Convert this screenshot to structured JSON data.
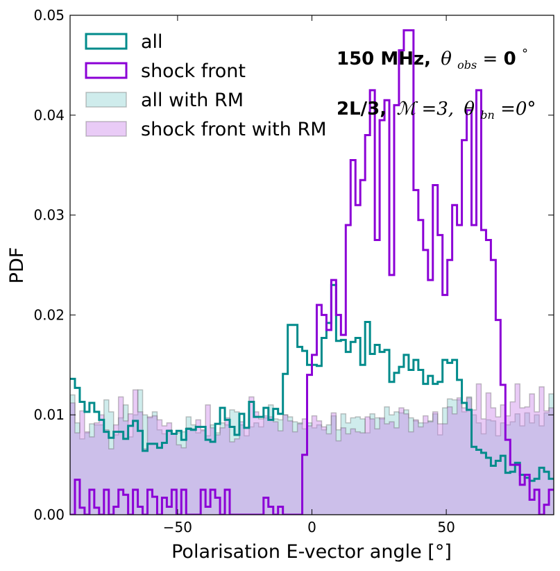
{
  "chart_data": {
    "type": "histogram",
    "xlabel": "Polarisation E-vector angle [°]",
    "ylabel": "PDF",
    "xlim": [
      -90,
      90
    ],
    "ylim": [
      0,
      0.05
    ],
    "xticks": [
      -50,
      0,
      50
    ],
    "yticks": [
      0.0,
      0.01,
      0.02,
      0.03,
      0.04,
      0.05
    ],
    "xtick_labels": [
      "−50",
      "0",
      "50"
    ],
    "ytick_labels": [
      "0.00",
      "0.01",
      "0.02",
      "0.03",
      "0.04",
      "0.05"
    ],
    "bin_edges_range": [
      -90,
      90
    ],
    "n_bins": 100,
    "annotations": {
      "line1_bold": "150 MHz,",
      "line1_math": "θ",
      "line1_sub": "obs",
      "line1_eq": "=",
      "line1_val": "0",
      "line1_deg": "°",
      "line2_bold": "2L/3,",
      "line2_math1": "ℳ",
      "line2_eq1": "=3,",
      "line2_math2": "θ",
      "line2_sub2": "bn",
      "line2_eq2": "=0°"
    },
    "legend": {
      "placement": "top-left",
      "entries": [
        "all",
        "shock front",
        "all with RM",
        "shock front with RM"
      ]
    },
    "series": [
      {
        "name": "all",
        "style": "step",
        "color": "#008b8b",
        "values": [
          0.0136,
          0.0127,
          0.0113,
          0.0103,
          0.0112,
          0.0103,
          0.0095,
          0.0083,
          0.0077,
          0.0083,
          0.0083,
          0.0076,
          0.0089,
          0.0094,
          0.0084,
          0.0064,
          0.0071,
          0.0071,
          0.0067,
          0.0072,
          0.0084,
          0.0081,
          0.0084,
          0.0075,
          0.0086,
          0.0085,
          0.0088,
          0.0088,
          0.0075,
          0.0073,
          0.0091,
          0.0107,
          0.0095,
          0.0088,
          0.008,
          0.0101,
          0.0087,
          0.0113,
          0.0098,
          0.0098,
          0.0107,
          0.0095,
          0.0106,
          0.0101,
          0.0141,
          0.019,
          0.019,
          0.0168,
          0.0164,
          0.015,
          0.015,
          0.0149,
          0.0177,
          0.0192,
          0.023,
          0.0174,
          0.0175,
          0.0163,
          0.0173,
          0.0177,
          0.015,
          0.0193,
          0.0161,
          0.017,
          0.0163,
          0.0165,
          0.0133,
          0.0142,
          0.0148,
          0.016,
          0.0145,
          0.0155,
          0.0145,
          0.0131,
          0.0139,
          0.0131,
          0.0133,
          0.0155,
          0.0152,
          0.0155,
          0.0135,
          0.0112,
          0.0105,
          0.0068,
          0.0065,
          0.0062,
          0.0057,
          0.0049,
          0.0054,
          0.0059,
          0.0042,
          0.0043,
          0.0052,
          0.004,
          0.0037,
          0.0034,
          0.0036,
          0.0047,
          0.0043,
          0.0036
        ],
        "note": "values estimated from gridlines"
      },
      {
        "name": "shock front",
        "style": "step",
        "color": "#8b00d6",
        "values": [
          0.0,
          0.0035,
          0.0007,
          0.0,
          0.0025,
          0.0007,
          0.0,
          0.0025,
          0.0,
          0.0008,
          0.0025,
          0.002,
          0.0,
          0.0025,
          0.0008,
          0.0,
          0.0025,
          0.0018,
          0.0,
          0.0017,
          0.0008,
          0.0025,
          0.0,
          0.0025,
          0.0,
          0.0,
          0.0,
          0.0025,
          0.0008,
          0.0025,
          0.0017,
          0.0,
          0.0025,
          0.0,
          0.0,
          0.0,
          0.0,
          0.0,
          0.0,
          0.0,
          0.0017,
          0.0008,
          0.0,
          0.0008,
          0.0,
          0.0,
          0.0,
          0.0,
          0.006,
          0.014,
          0.016,
          0.021,
          0.02,
          0.0185,
          0.0235,
          0.02,
          0.018,
          0.029,
          0.0355,
          0.031,
          0.0335,
          0.038,
          0.0425,
          0.0275,
          0.0395,
          0.0415,
          0.024,
          0.041,
          0.0465,
          0.0485,
          0.0485,
          0.0325,
          0.0295,
          0.0265,
          0.0235,
          0.033,
          0.028,
          0.022,
          0.0255,
          0.031,
          0.029,
          0.0375,
          0.0405,
          0.029,
          0.0425,
          0.0285,
          0.0275,
          0.0255,
          0.0195,
          0.013,
          0.0075,
          0.005,
          0.005,
          0.003,
          0.004,
          0.0015,
          0.0025,
          0.0,
          0.001,
          0.0025
        ],
        "note": "values estimated from gridlines"
      },
      {
        "name": "all with RM",
        "style": "filled-step",
        "color": "#5fbfbf",
        "opacity": 0.3,
        "values": [
          0.012,
          0.0092,
          0.0076,
          0.0082,
          0.0091,
          0.009,
          0.009,
          0.0115,
          0.0103,
          0.008,
          0.0097,
          0.011,
          0.0078,
          0.01,
          0.0125,
          0.01,
          0.0097,
          0.0103,
          0.0085,
          0.0081,
          0.0085,
          0.0081,
          0.0082,
          0.0083,
          0.0098,
          0.009,
          0.0082,
          0.0084,
          0.0079,
          0.009,
          0.0082,
          0.0092,
          0.009,
          0.0105,
          0.0103,
          0.009,
          0.0079,
          0.0088,
          0.0092,
          0.0088,
          0.0097,
          0.011,
          0.0096,
          0.0095,
          0.01,
          0.0098,
          0.0093,
          0.0092,
          0.0086,
          0.0092,
          0.0087,
          0.009,
          0.0085,
          0.009,
          0.0099,
          0.0085,
          0.0101,
          0.0092,
          0.0097,
          0.0098,
          0.0096,
          0.0082,
          0.0101,
          0.0097,
          0.0096,
          0.0108,
          0.01,
          0.0103,
          0.0102,
          0.0105,
          0.0097,
          0.0094,
          0.0092,
          0.0092,
          0.0094,
          0.0101,
          0.008,
          0.0107,
          0.0116,
          0.0115,
          0.0115,
          0.0103,
          0.0118,
          0.01,
          0.0092,
          0.0081,
          0.0095,
          0.0094,
          0.0079,
          0.0092,
          0.009,
          0.0093,
          0.0101,
          0.0089,
          0.0102,
          0.0092,
          0.01,
          0.0089,
          0.0102,
          0.0121
        ],
        "note": "values estimated from gridlines"
      },
      {
        "name": "shock front with RM",
        "style": "filled-step",
        "color": "#c77de8",
        "opacity": 0.4,
        "values": [
          0.0112,
          0.0082,
          0.0104,
          0.0083,
          0.0078,
          0.0092,
          0.01,
          0.0085,
          0.0066,
          0.009,
          0.0118,
          0.0094,
          0.0101,
          0.0125,
          0.0103,
          0.0066,
          0.0098,
          0.0099,
          0.0095,
          0.0089,
          0.0092,
          0.0081,
          0.007,
          0.0067,
          0.0087,
          0.0086,
          0.0095,
          0.0085,
          0.011,
          0.0087,
          0.008,
          0.0087,
          0.0097,
          0.0073,
          0.0076,
          0.0093,
          0.0087,
          0.0118,
          0.0103,
          0.0096,
          0.0099,
          0.0098,
          0.0093,
          0.0084,
          0.01,
          0.0094,
          0.0083,
          0.0091,
          0.0096,
          0.0089,
          0.0099,
          0.0094,
          0.0088,
          0.0081,
          0.0102,
          0.0074,
          0.0087,
          0.0081,
          0.0086,
          0.0083,
          0.0082,
          0.0098,
          0.0096,
          0.0086,
          0.0097,
          0.0091,
          0.0093,
          0.0087,
          0.0107,
          0.0101,
          0.0083,
          0.0095,
          0.0088,
          0.0099,
          0.0093,
          0.0103,
          0.0091,
          0.0091,
          0.0108,
          0.0101,
          0.0117,
          0.0107,
          0.0117,
          0.0105,
          0.0131,
          0.0096,
          0.0122,
          0.0107,
          0.0098,
          0.011,
          0.0099,
          0.0113,
          0.0131,
          0.0107,
          0.0108,
          0.0121,
          0.0103,
          0.0128,
          0.0104,
          0.0107
        ],
        "note": "values estimated from gridlines"
      }
    ]
  }
}
